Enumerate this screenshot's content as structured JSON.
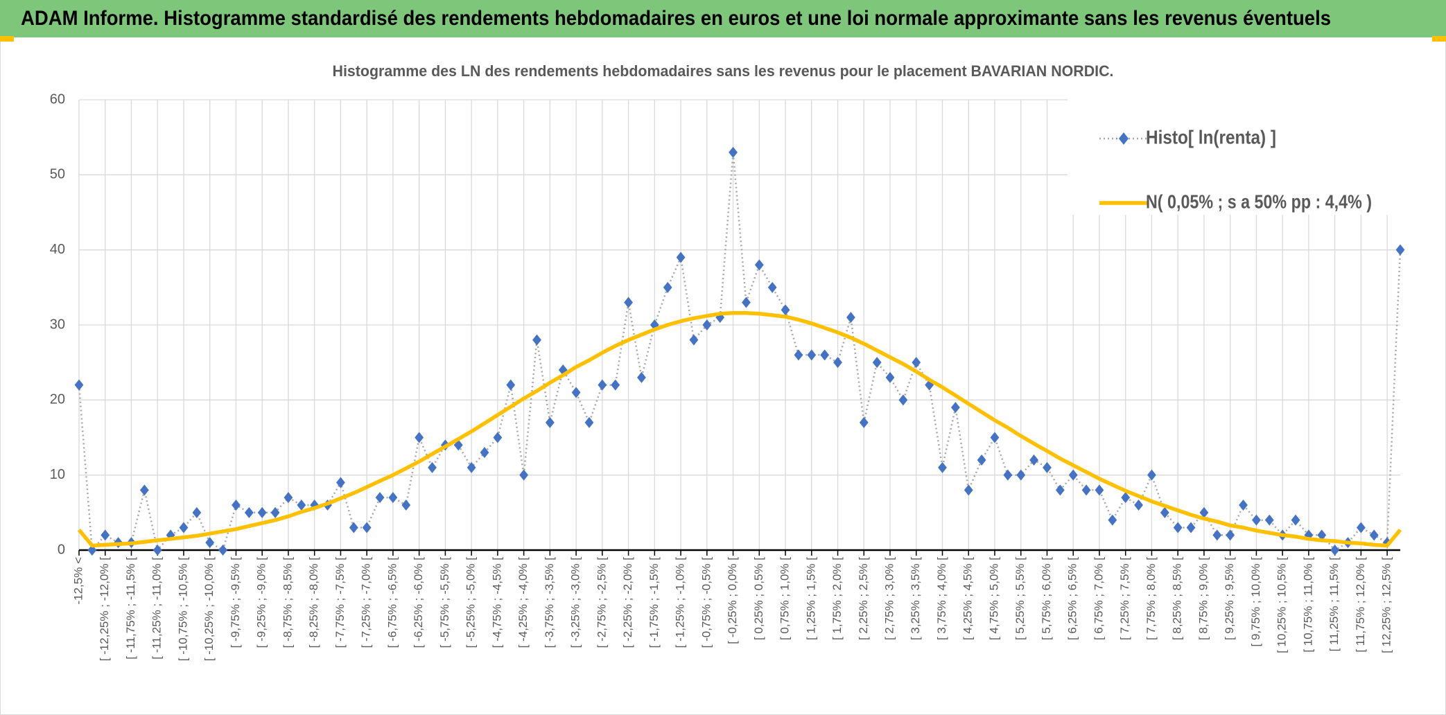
{
  "header": {
    "title": "ADAM Informe. Histogramme standardisé des rendements hebdomadaires en euros et une loi normale approximante sans les revenus éventuels"
  },
  "chart_data": {
    "type": "line",
    "title": "Histogramme des LN des rendements hebdomadaires sans les revenus pour le placement BAVARIAN NORDIC.",
    "categories": [
      "-12,5% <",
      null,
      "[ -12,25% ; -12,0% [",
      null,
      "[ -11,75% ; -11,5% [",
      null,
      "[ -11,25% ; -11,0% [",
      null,
      "[ -10,75% ; -10,5% [",
      null,
      "[ -10,25% ; -10,0% [",
      null,
      "[ -9,75% ; -9,5% [",
      null,
      "[ -9,25% ; -9,0% [",
      null,
      "[ -8,75% ; -8,5% [",
      null,
      "[ -8,25% ; -8,0% [",
      null,
      "[ -7,75% ; -7,5% [",
      null,
      "[ -7,25% ; -7,0% [",
      null,
      "[ -6,75% ; -6,5% [",
      null,
      "[ -6,25% ; -6,0% [",
      null,
      "[ -5,75% ; -5,5% [",
      null,
      "[ -5,25% ; -5,0% [",
      null,
      "[ -4,75% ; -4,5% [",
      null,
      "[ -4,25% ; -4,0% [",
      null,
      "[ -3,75% ; -3,5% [",
      null,
      "[ -3,25% ; -3,0% [",
      null,
      "[ -2,75% ; -2,5% [",
      null,
      "[ -2,25% ; -2,0% [",
      null,
      "[ -1,75% ; -1,5% [",
      null,
      "[ -1,25% ; -1,0% [",
      null,
      "[ -0,75% ; -0,5% [",
      null,
      "[ -0,25% ; 0,0% [",
      null,
      "[ 0,25% ; 0,5% [",
      null,
      "[ 0,75% ; 1,0% [",
      null,
      "[ 1,25% ; 1,5% [",
      null,
      "[ 1,75% ; 2,0% [",
      null,
      "[ 2,25% ; 2,5% [",
      null,
      "[ 2,75% ; 3,0% [",
      null,
      "[ 3,25% ; 3,5% [",
      null,
      "[ 3,75% ; 4,0% [",
      null,
      "[ 4,25% ; 4,5% [",
      null,
      "[ 4,75% ; 5,0% [",
      null,
      "[ 5,25% ; 5,5% [",
      null,
      "[ 5,75% ; 6,0% [",
      null,
      "[ 6,25% ; 6,5% [",
      null,
      "[ 6,75% ; 7,0% [",
      null,
      "[ 7,25% ; 7,5% [",
      null,
      "[ 7,75% ; 8,0% [",
      null,
      "[ 8,25% ; 8,5% [",
      null,
      "[ 8,75% ; 9,0% [",
      null,
      "[ 9,25% ; 9,5% [",
      null,
      "[ 9,75% ; 10,0% [",
      null,
      "[ 10,25% ; 10,5% [",
      null,
      "[ 10,75% ; 11,0% [",
      null,
      "[ 11,25% ; 11,5% [",
      null,
      "[ 11,75% ; 12,0% [",
      null,
      "[ 12,25% ; 12,5% [",
      null
    ],
    "series": [
      {
        "name": "Histo[ ln(renta) ]",
        "color": "#4472c4",
        "line_color": "#a6a6a6",
        "linestyle": "dotted",
        "marker": "diamond",
        "values": [
          22,
          0,
          2,
          1,
          1,
          8,
          0,
          2,
          3,
          5,
          1,
          0,
          6,
          5,
          5,
          5,
          7,
          6,
          6,
          6,
          9,
          3,
          3,
          7,
          7,
          6,
          15,
          11,
          14,
          14,
          11,
          13,
          15,
          22,
          10,
          28,
          17,
          24,
          21,
          17,
          22,
          22,
          33,
          23,
          30,
          35,
          39,
          28,
          30,
          31,
          53,
          33,
          38,
          35,
          32,
          26,
          26,
          26,
          25,
          31,
          17,
          25,
          23,
          20,
          25,
          22,
          11,
          19,
          8,
          12,
          15,
          10,
          10,
          12,
          11,
          8,
          10,
          8,
          8,
          4,
          7,
          6,
          10,
          5,
          3,
          3,
          5,
          2,
          2,
          6,
          4,
          4,
          2,
          4,
          2,
          2,
          0,
          1,
          3,
          2,
          1,
          40
        ]
      },
      {
        "name": "N( 0,05% ; s a 50% pp : 4,4% )",
        "color": "#ffc000",
        "linestyle": "solid",
        "marker": null,
        "values": [
          2.7,
          0.6,
          0.7,
          0.8,
          0.9,
          1.1,
          1.3,
          1.5,
          1.7,
          1.9,
          2.2,
          2.5,
          2.8,
          3.2,
          3.6,
          4.0,
          4.5,
          5.1,
          5.6,
          6.2,
          6.9,
          7.6,
          8.4,
          9.2,
          10.0,
          10.9,
          11.8,
          12.8,
          13.8,
          14.8,
          15.8,
          16.9,
          18.0,
          19.1,
          20.2,
          21.2,
          22.3,
          23.3,
          24.4,
          25.3,
          26.3,
          27.2,
          28.0,
          28.7,
          29.4,
          30.0,
          30.5,
          30.9,
          31.2,
          31.5,
          31.6,
          31.6,
          31.5,
          31.3,
          31.1,
          30.7,
          30.2,
          29.6,
          29.0,
          28.3,
          27.5,
          26.6,
          25.7,
          24.8,
          23.8,
          22.7,
          21.7,
          20.6,
          19.5,
          18.4,
          17.3,
          16.3,
          15.2,
          14.2,
          13.2,
          12.2,
          11.3,
          10.4,
          9.5,
          8.7,
          7.9,
          7.2,
          6.5,
          5.9,
          5.3,
          4.7,
          4.2,
          3.8,
          3.3,
          3.0,
          2.6,
          2.3,
          2.0,
          1.8,
          1.5,
          1.3,
          1.2,
          1.0,
          0.9,
          0.7,
          0.6,
          2.7
        ]
      }
    ],
    "ylim": [
      0,
      60
    ],
    "yticks": [
      0,
      10,
      20,
      30,
      40,
      50,
      60
    ],
    "grid": true,
    "legend": "upper right"
  }
}
